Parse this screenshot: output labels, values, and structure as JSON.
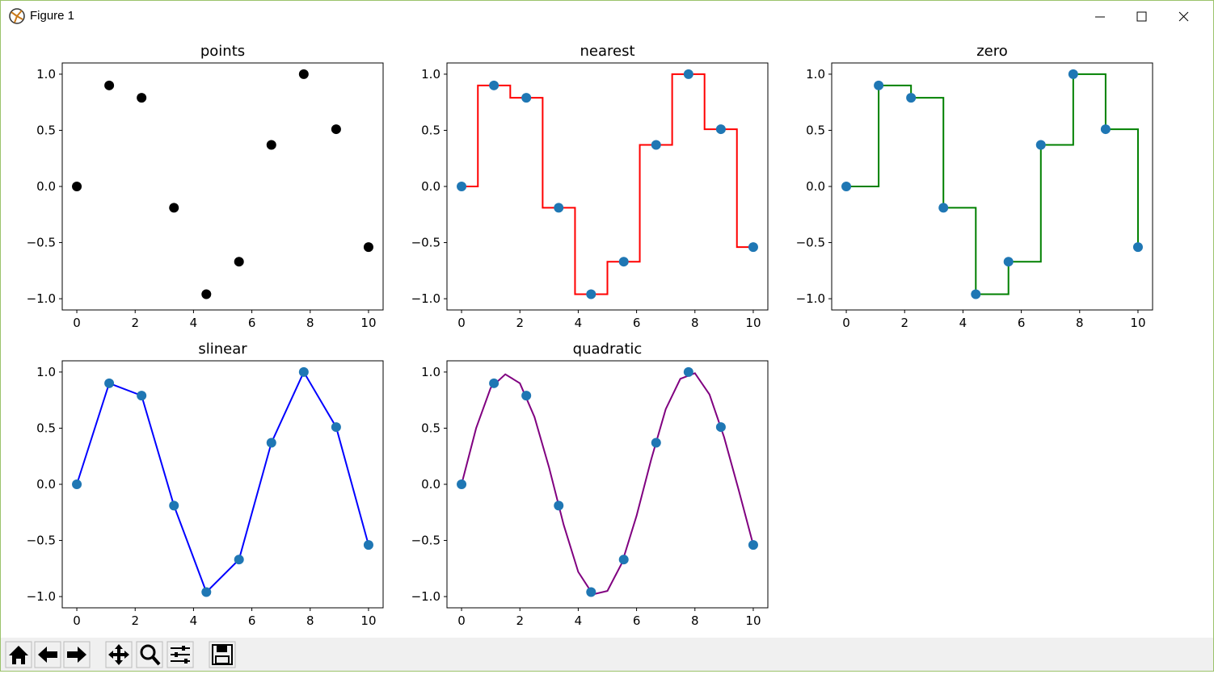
{
  "window": {
    "title": "Figure 1"
  },
  "chart_data": [
    {
      "type": "scatter",
      "title": "points",
      "xlim": [
        -0.5,
        10.5
      ],
      "xticks": [
        0,
        2,
        4,
        6,
        8,
        10
      ],
      "ylim": [
        -1.1,
        1.1
      ],
      "yticks": [
        {
          "value": -1.0,
          "label": "−1.0"
        },
        {
          "value": -0.5,
          "label": "−0.5"
        },
        {
          "value": 0.0,
          "label": "0.0"
        },
        0.5,
        {
          "value": 1.0,
          "label": "1.0"
        }
      ],
      "series": [
        {
          "type": "scatter",
          "color": "#000000",
          "x": [
            0,
            1.11,
            2.22,
            3.33,
            4.44,
            5.56,
            6.67,
            7.78,
            8.89,
            10
          ],
          "values": [
            0,
            0.9,
            0.79,
            -0.19,
            -0.96,
            -0.67,
            0.37,
            1.0,
            0.51,
            -0.54
          ]
        }
      ]
    },
    {
      "type": "line",
      "title": "nearest",
      "xlim": [
        -0.5,
        10.5
      ],
      "xticks": [
        0,
        2,
        4,
        6,
        8,
        10
      ],
      "ylim": [
        -1.1,
        1.1
      ],
      "yticks": [
        {
          "value": -1.0,
          "label": "−1.0"
        },
        {
          "value": -0.5,
          "label": "−0.5"
        },
        {
          "value": 0.0,
          "label": "0.0"
        },
        0.5,
        {
          "value": 1.0,
          "label": "1.0"
        }
      ],
      "series": [
        {
          "type": "line",
          "color": "#ff0000",
          "x": [
            0,
            0.56,
            0.56,
            1.67,
            1.67,
            2.78,
            2.78,
            3.89,
            3.89,
            5.0,
            5.0,
            6.11,
            6.11,
            7.22,
            7.22,
            8.33,
            8.33,
            9.44,
            9.44,
            10
          ],
          "values": [
            0,
            0,
            0.9,
            0.9,
            0.79,
            0.79,
            -0.19,
            -0.19,
            -0.96,
            -0.96,
            -0.67,
            -0.67,
            0.37,
            0.37,
            1.0,
            1.0,
            0.51,
            0.51,
            -0.54,
            -0.54
          ]
        },
        {
          "type": "scatter",
          "color": "#1f77b4",
          "x": [
            0,
            1.11,
            2.22,
            3.33,
            4.44,
            5.56,
            6.67,
            7.78,
            8.89,
            10
          ],
          "values": [
            0,
            0.9,
            0.79,
            -0.19,
            -0.96,
            -0.67,
            0.37,
            1.0,
            0.51,
            -0.54
          ]
        }
      ]
    },
    {
      "type": "line",
      "title": "zero",
      "xlim": [
        -0.5,
        10.5
      ],
      "xticks": [
        0,
        2,
        4,
        6,
        8,
        10
      ],
      "ylim": [
        -1.1,
        1.1
      ],
      "yticks": [
        {
          "value": -1.0,
          "label": "−1.0"
        },
        {
          "value": -0.5,
          "label": "−0.5"
        },
        {
          "value": 0.0,
          "label": "0.0"
        },
        0.5,
        {
          "value": 1.0,
          "label": "1.0"
        }
      ],
      "series": [
        {
          "type": "line",
          "color": "#008000",
          "x": [
            0,
            1.11,
            1.11,
            2.22,
            2.22,
            3.33,
            3.33,
            4.44,
            4.44,
            5.56,
            5.56,
            6.67,
            6.67,
            7.78,
            7.78,
            8.89,
            8.89,
            10,
            10
          ],
          "values": [
            0,
            0,
            0.9,
            0.9,
            0.79,
            0.79,
            -0.19,
            -0.19,
            -0.96,
            -0.96,
            -0.67,
            -0.67,
            0.37,
            0.37,
            1.0,
            1.0,
            0.51,
            0.51,
            -0.54
          ]
        },
        {
          "type": "scatter",
          "color": "#1f77b4",
          "x": [
            0,
            1.11,
            2.22,
            3.33,
            4.44,
            5.56,
            6.67,
            7.78,
            8.89,
            10
          ],
          "values": [
            0,
            0.9,
            0.79,
            -0.19,
            -0.96,
            -0.67,
            0.37,
            1.0,
            0.51,
            -0.54
          ]
        }
      ]
    },
    {
      "type": "line",
      "title": "slinear",
      "xlim": [
        -0.5,
        10.5
      ],
      "xticks": [
        0,
        2,
        4,
        6,
        8,
        10
      ],
      "ylim": [
        -1.1,
        1.1
      ],
      "yticks": [
        {
          "value": -1.0,
          "label": "−1.0"
        },
        {
          "value": -0.5,
          "label": "−0.5"
        },
        {
          "value": 0.0,
          "label": "0.0"
        },
        0.5,
        {
          "value": 1.0,
          "label": "1.0"
        }
      ],
      "series": [
        {
          "type": "line",
          "color": "#0000ff",
          "x": [
            0,
            1.11,
            2.22,
            3.33,
            4.44,
            5.56,
            6.67,
            7.78,
            8.89,
            10
          ],
          "values": [
            0,
            0.9,
            0.79,
            -0.19,
            -0.96,
            -0.67,
            0.37,
            1.0,
            0.51,
            -0.54
          ]
        },
        {
          "type": "scatter",
          "color": "#1f77b4",
          "x": [
            0,
            1.11,
            2.22,
            3.33,
            4.44,
            5.56,
            6.67,
            7.78,
            8.89,
            10
          ],
          "values": [
            0,
            0.9,
            0.79,
            -0.19,
            -0.96,
            -0.67,
            0.37,
            1.0,
            0.51,
            -0.54
          ]
        }
      ]
    },
    {
      "type": "line",
      "title": "quadratic",
      "xlim": [
        -0.5,
        10.5
      ],
      "xticks": [
        0,
        2,
        4,
        6,
        8,
        10
      ],
      "ylim": [
        -1.1,
        1.1
      ],
      "yticks": [
        {
          "value": -1.0,
          "label": "−1.0"
        },
        {
          "value": -0.5,
          "label": "−0.5"
        },
        {
          "value": 0.0,
          "label": "0.0"
        },
        0.5,
        {
          "value": 1.0,
          "label": "1.0"
        }
      ],
      "series": [
        {
          "type": "line",
          "color": "#800080",
          "x": [
            0,
            0.5,
            1,
            1.5,
            2,
            2.5,
            3,
            3.5,
            4,
            4.5,
            5,
            5.5,
            6,
            6.5,
            7,
            7.5,
            8,
            8.5,
            9,
            9.5,
            10
          ],
          "values": [
            0,
            0.5,
            0.86,
            0.98,
            0.9,
            0.6,
            0.15,
            -0.36,
            -0.78,
            -0.98,
            -0.95,
            -0.7,
            -0.28,
            0.22,
            0.67,
            0.94,
            0.99,
            0.8,
            0.42,
            -0.05,
            -0.54
          ]
        },
        {
          "type": "scatter",
          "color": "#1f77b4",
          "x": [
            0,
            1.11,
            2.22,
            3.33,
            4.44,
            5.56,
            6.67,
            7.78,
            8.89,
            10
          ],
          "values": [
            0,
            0.9,
            0.79,
            -0.19,
            -0.96,
            -0.67,
            0.37,
            1.0,
            0.51,
            -0.54
          ]
        }
      ]
    }
  ]
}
